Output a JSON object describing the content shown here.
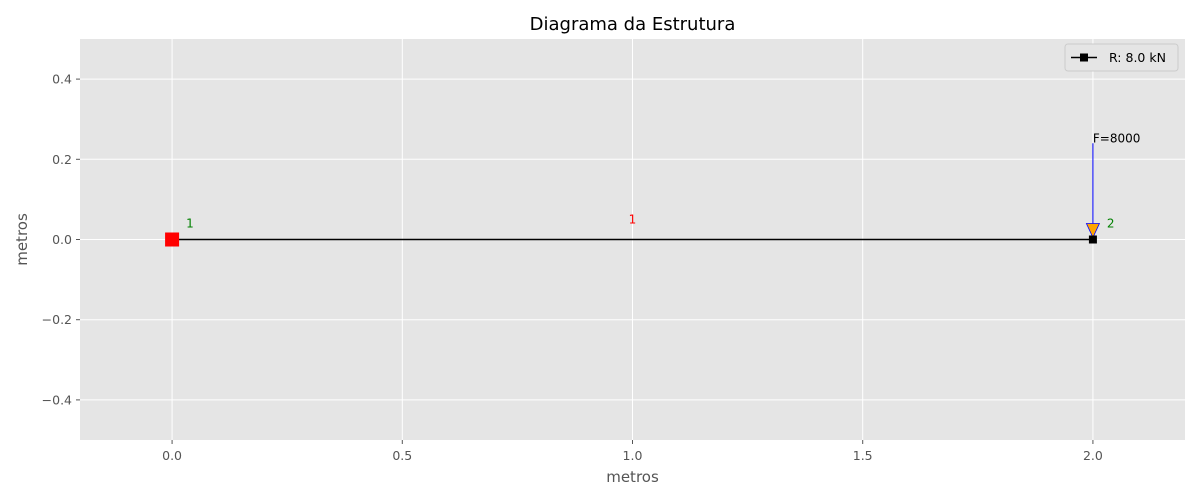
{
  "chart_data": {
    "type": "scatter",
    "title": "Diagrama da Estrutura",
    "xlabel": "metros",
    "ylabel": "metros",
    "xlim": [
      -0.2,
      2.2
    ],
    "ylim": [
      -0.5,
      0.5
    ],
    "xticks": [
      0.0,
      0.5,
      1.0,
      1.5,
      2.0
    ],
    "xtick_labels": [
      "0.0",
      "0.5",
      "1.0",
      "1.5",
      "2.0"
    ],
    "yticks": [
      -0.4,
      -0.2,
      0.0,
      0.2,
      0.4
    ],
    "ytick_labels": [
      "−0.4",
      "−0.2",
      "0.0",
      "0.2",
      "0.4"
    ],
    "grid": true,
    "legend_position": "top-right",
    "nodes": [
      {
        "x": 0.0,
        "y": 0.0,
        "label": "1",
        "marker": "square",
        "color": "#ff0000"
      },
      {
        "x": 2.0,
        "y": 0.0,
        "label": "2",
        "marker": "square",
        "color": "#000000"
      }
    ],
    "elements": [
      {
        "from": [
          0.0,
          0.0
        ],
        "to": [
          2.0,
          0.0
        ],
        "label": "1",
        "label_at": [
          1.0,
          0.05
        ],
        "color": "#000000"
      }
    ],
    "loads": [
      {
        "x": 2.0,
        "y": 0.0,
        "label": "F=8000",
        "top_y": 0.24,
        "line_color": "#0000ff",
        "head_color": "#ffa500"
      }
    ],
    "legend": [
      {
        "label": "R: 8.0 kN",
        "color": "#000000",
        "marker": "square"
      }
    ],
    "colors": {
      "background": "#e5e5e5",
      "grid": "#ffffff",
      "node_label": "#008000",
      "element_label": "#ff0000"
    }
  }
}
